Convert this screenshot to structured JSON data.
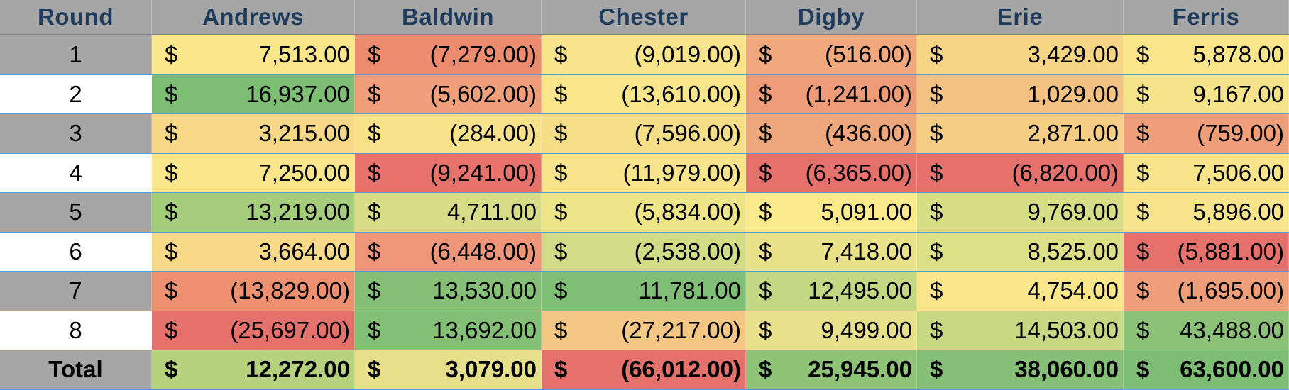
{
  "headers": [
    "Round",
    "Andrews",
    "Baldwin",
    "Chester",
    "Digby",
    "Erie",
    "Ferris"
  ],
  "currency_symbol": "$",
  "rows": [
    {
      "label": "1",
      "label_bg": "#a6a6a6",
      "cells": [
        {
          "value": "7,513.00",
          "bg": "#f9e68b"
        },
        {
          "value": "(7,279.00)",
          "bg": "#ec8c6e"
        },
        {
          "value": "(9,019.00)",
          "bg": "#f8e48b"
        },
        {
          "value": "(516.00)",
          "bg": "#f0a87c"
        },
        {
          "value": "3,429.00",
          "bg": "#f6d585"
        },
        {
          "value": "5,878.00",
          "bg": "#f9e68b"
        }
      ]
    },
    {
      "label": "2",
      "label_bg": "#ffffff",
      "cells": [
        {
          "value": "16,937.00",
          "bg": "#7dbd74"
        },
        {
          "value": "(5,602.00)",
          "bg": "#f09f7a"
        },
        {
          "value": "(13,610.00)",
          "bg": "#f9e68b"
        },
        {
          "value": "(1,241.00)",
          "bg": "#ee9c78"
        },
        {
          "value": "1,029.00",
          "bg": "#f3c282"
        },
        {
          "value": "9,167.00",
          "bg": "#f5e48a"
        }
      ]
    },
    {
      "label": "3",
      "label_bg": "#a6a6a6",
      "cells": [
        {
          "value": "3,215.00",
          "bg": "#f7d887"
        },
        {
          "value": "(284.00)",
          "bg": "#f7e28a"
        },
        {
          "value": "(7,596.00)",
          "bg": "#f6de89"
        },
        {
          "value": "(436.00)",
          "bg": "#efa77c"
        },
        {
          "value": "2,871.00",
          "bg": "#f5cd84"
        },
        {
          "value": "(759.00)",
          "bg": "#ee9e78"
        }
      ]
    },
    {
      "label": "4",
      "label_bg": "#ffffff",
      "cells": [
        {
          "value": "7,250.00",
          "bg": "#f9e68b"
        },
        {
          "value": "(9,241.00)",
          "bg": "#e8736d"
        },
        {
          "value": "(11,979.00)",
          "bg": "#f8e58b"
        },
        {
          "value": "(6,365.00)",
          "bg": "#e5716c"
        },
        {
          "value": "(6,820.00)",
          "bg": "#e5716c"
        },
        {
          "value": "7,506.00",
          "bg": "#f8e58b"
        }
      ]
    },
    {
      "label": "5",
      "label_bg": "#a6a6a6",
      "cells": [
        {
          "value": "13,219.00",
          "bg": "#a4cd7c"
        },
        {
          "value": "4,711.00",
          "bg": "#d7dd86"
        },
        {
          "value": "(5,834.00)",
          "bg": "#eee589"
        },
        {
          "value": "5,091.00",
          "bg": "#faea8c"
        },
        {
          "value": "9,769.00",
          "bg": "#d6de86"
        },
        {
          "value": "5,896.00",
          "bg": "#f8e58b"
        }
      ]
    },
    {
      "label": "6",
      "label_bg": "#ffffff",
      "cells": [
        {
          "value": "3,664.00",
          "bg": "#f7d987"
        },
        {
          "value": "(6,448.00)",
          "bg": "#ee957a"
        },
        {
          "value": "(2,538.00)",
          "bg": "#d2dc86"
        },
        {
          "value": "7,418.00",
          "bg": "#e9e28b"
        },
        {
          "value": "8,525.00",
          "bg": "#dde087"
        },
        {
          "value": "(5,881.00)",
          "bg": "#e5716c"
        }
      ]
    },
    {
      "label": "7",
      "label_bg": "#a6a6a6",
      "cells": [
        {
          "value": "(13,829.00)",
          "bg": "#ec906f"
        },
        {
          "value": "13,530.00",
          "bg": "#86c076"
        },
        {
          "value": "11,781.00",
          "bg": "#7fbe75"
        },
        {
          "value": "12,495.00",
          "bg": "#c3d882"
        },
        {
          "value": "4,754.00",
          "bg": "#f9e68b"
        },
        {
          "value": "(1,695.00)",
          "bg": "#ee9e78"
        }
      ]
    },
    {
      "label": "8",
      "label_bg": "#ffffff",
      "cells": [
        {
          "value": "(25,697.00)",
          "bg": "#e5716c"
        },
        {
          "value": "13,692.00",
          "bg": "#84bf76"
        },
        {
          "value": "(27,217.00)",
          "bg": "#f4c784"
        },
        {
          "value": "9,499.00",
          "bg": "#e6e18a"
        },
        {
          "value": "14,503.00",
          "bg": "#c6d882"
        },
        {
          "value": "43,488.00",
          "bg": "#8cc278"
        }
      ]
    }
  ],
  "total": {
    "label": "Total",
    "label_bg": "#a6a6a6",
    "cells": [
      {
        "value": "12,272.00",
        "bg": "#b6d27f"
      },
      {
        "value": "3,079.00",
        "bg": "#e6e08a"
      },
      {
        "value": "(66,012.00)",
        "bg": "#e5716c"
      },
      {
        "value": "25,945.00",
        "bg": "#8fc378"
      },
      {
        "value": "38,060.00",
        "bg": "#86c076"
      },
      {
        "value": "63,600.00",
        "bg": "#7dbd74"
      }
    ]
  }
}
